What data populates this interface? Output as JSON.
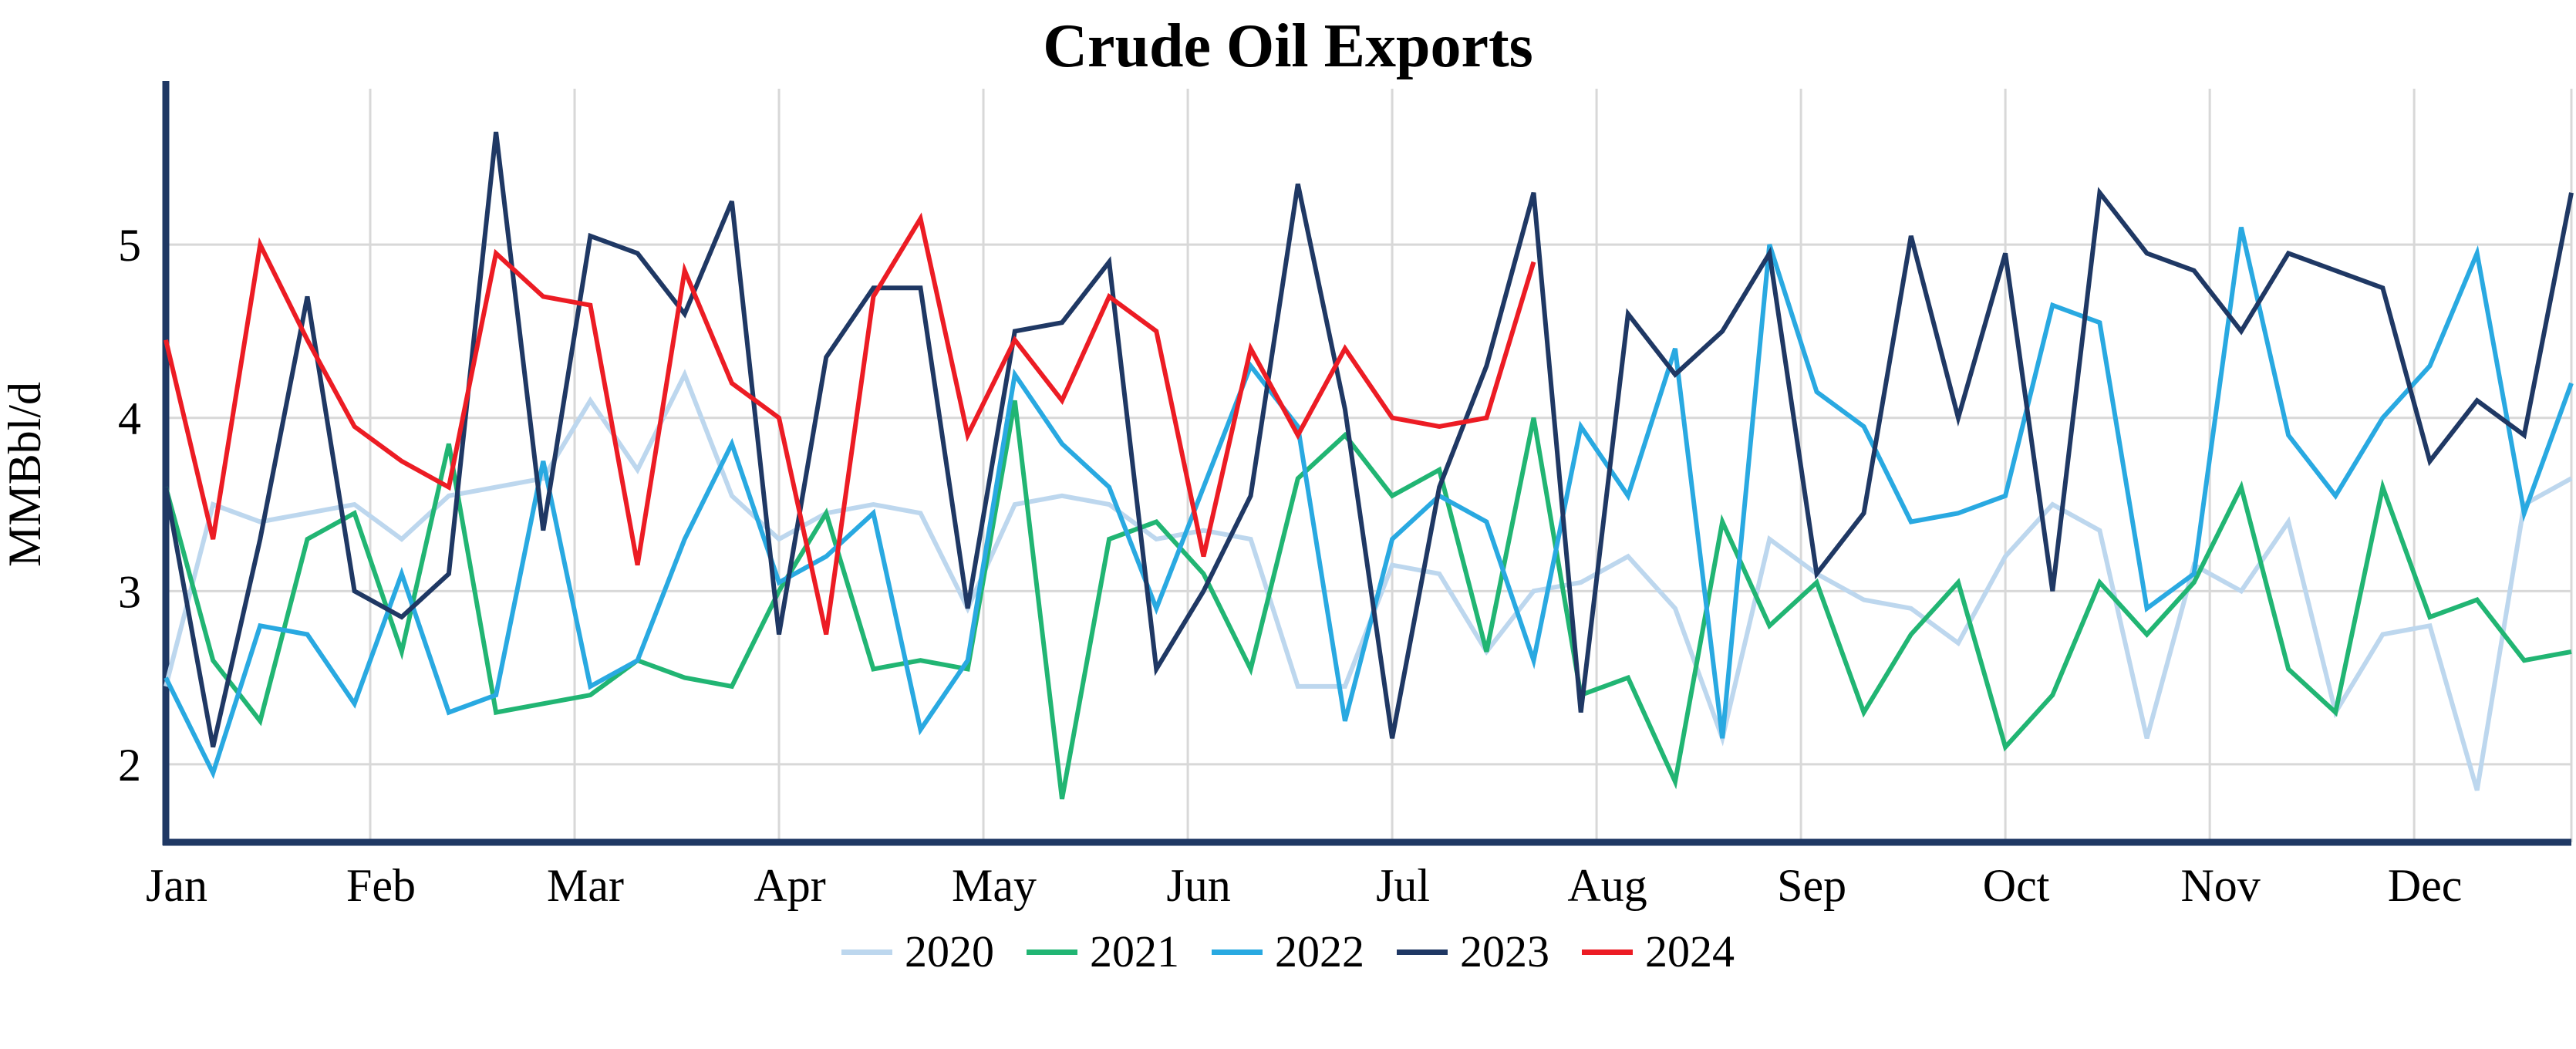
{
  "chart": {
    "title": "Crude Oil Exports",
    "ylabel": "MMBbl/d"
  },
  "colors": {
    "axis": "#1F3864",
    "grid": "#D8D8D8",
    "text": "#000000"
  },
  "chart_data": {
    "type": "line",
    "title": "Crude Oil Exports",
    "xlabel": "",
    "ylabel": "MMBbl/d",
    "x_mode": "weekly",
    "weeks_per_year": 52,
    "months": [
      "Jan",
      "Feb",
      "Mar",
      "Apr",
      "May",
      "Jun",
      "Jul",
      "Aug",
      "Sep",
      "Oct",
      "Nov",
      "Dec"
    ],
    "yticks": [
      2,
      3,
      4,
      5
    ],
    "ylim": [
      1.55,
      5.9
    ],
    "grid": true,
    "legend_position": "bottom",
    "series": [
      {
        "name": "2020",
        "color": "#BDD7EE",
        "values": [
          2.45,
          3.5,
          3.4,
          3.45,
          3.5,
          3.3,
          3.55,
          3.6,
          3.65,
          4.1,
          3.7,
          4.25,
          3.55,
          3.3,
          3.45,
          3.5,
          3.45,
          2.9,
          3.5,
          3.55,
          3.5,
          3.3,
          3.35,
          3.3,
          2.45,
          2.45,
          3.15,
          3.1,
          2.65,
          3.0,
          3.05,
          3.2,
          2.9,
          2.15,
          3.3,
          3.1,
          2.95,
          2.9,
          2.7,
          3.2,
          3.5,
          3.35,
          2.15,
          3.15,
          3.0,
          3.4,
          2.3,
          2.75,
          2.8,
          1.85,
          3.5,
          3.65
        ]
      },
      {
        "name": "2021",
        "color": "#21B573",
        "values": [
          3.6,
          2.6,
          2.25,
          3.3,
          3.45,
          2.65,
          3.85,
          2.3,
          2.35,
          2.4,
          2.6,
          2.5,
          2.45,
          3.0,
          3.45,
          2.55,
          2.6,
          2.55,
          4.1,
          1.8,
          3.3,
          3.4,
          3.1,
          2.55,
          3.65,
          3.9,
          3.55,
          3.7,
          2.65,
          4.0,
          2.4,
          2.5,
          1.9,
          3.4,
          2.8,
          3.05,
          2.3,
          2.75,
          3.05,
          2.1,
          2.4,
          3.05,
          2.75,
          3.05,
          3.6,
          2.55,
          2.3,
          3.6,
          2.85,
          2.95,
          2.6,
          2.65
        ]
      },
      {
        "name": "2022",
        "color": "#29A9E1",
        "values": [
          2.5,
          1.95,
          2.8,
          2.75,
          2.35,
          3.1,
          2.3,
          2.4,
          3.75,
          2.45,
          2.6,
          3.3,
          3.85,
          3.05,
          3.2,
          3.45,
          2.2,
          2.6,
          4.25,
          3.85,
          3.6,
          2.9,
          3.6,
          4.3,
          3.95,
          2.25,
          3.3,
          3.55,
          3.4,
          2.6,
          3.95,
          3.55,
          4.4,
          2.15,
          5.0,
          4.15,
          3.95,
          3.4,
          3.45,
          3.55,
          4.65,
          4.55,
          2.9,
          3.1,
          5.1,
          3.9,
          3.55,
          4.0,
          4.3,
          4.95,
          3.45,
          4.2
        ]
      },
      {
        "name": "2023",
        "color": "#1F3864",
        "values": [
          3.6,
          2.1,
          3.3,
          4.7,
          3.0,
          2.85,
          3.1,
          5.65,
          3.35,
          5.05,
          4.95,
          4.6,
          5.25,
          2.75,
          4.35,
          4.75,
          4.75,
          2.9,
          4.5,
          4.55,
          4.9,
          2.55,
          3.0,
          3.55,
          5.35,
          4.05,
          2.15,
          3.6,
          4.3,
          5.3,
          2.3,
          4.6,
          4.25,
          4.5,
          4.95,
          3.1,
          3.45,
          5.05,
          4.0,
          4.95,
          3.0,
          5.3,
          4.95,
          4.85,
          4.5,
          4.95,
          4.85,
          4.75,
          3.75,
          4.1,
          3.9,
          5.3
        ]
      },
      {
        "name": "2024",
        "color": "#EC1C24",
        "values": [
          4.45,
          3.3,
          5.0,
          4.45,
          3.95,
          3.75,
          3.6,
          4.95,
          4.7,
          4.65,
          3.15,
          4.85,
          4.2,
          4.0,
          2.75,
          4.7,
          5.15,
          3.9,
          4.45,
          4.1,
          4.7,
          4.5,
          3.2,
          4.4,
          3.9,
          4.4,
          4.0,
          3.95,
          4.0,
          4.9
        ]
      }
    ]
  }
}
